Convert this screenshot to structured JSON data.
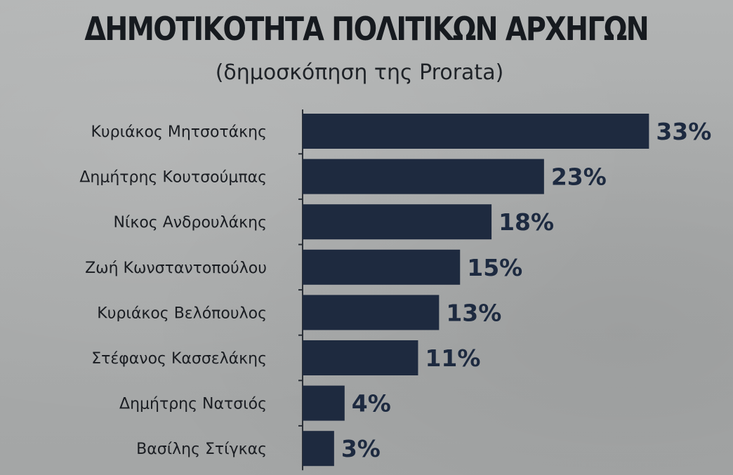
{
  "chart_data": {
    "type": "bar",
    "orientation": "horizontal",
    "title": "ΔΗΜΟΤΙΚΟΤΗΤΑ ΠΟΛΙΤΙΚΩΝ ΑΡΧΗΓΩΝ",
    "subtitle": "(δημοσκόπηση της Prorata)",
    "categories": [
      "Κυριάκος Μητσοτάκης",
      "Δημήτρης Κουτσούμπας",
      "Νίκος Ανδρουλάκης",
      "Ζωή Κωνσταντοπούλου",
      "Κυριάκος Βελόπουλος",
      "Στέφανος Κασσελάκης",
      "Δημήτρης Νατσιός",
      "Βασίλης Στίγκας"
    ],
    "values": [
      33,
      23,
      18,
      15,
      13,
      11,
      4,
      3
    ],
    "value_labels": [
      "33%",
      "23%",
      "18%",
      "15%",
      "13%",
      "11%",
      "4%",
      "3%"
    ],
    "unit": "%",
    "bar_color": "#1e2a3f",
    "grid": false,
    "legend": "none"
  }
}
